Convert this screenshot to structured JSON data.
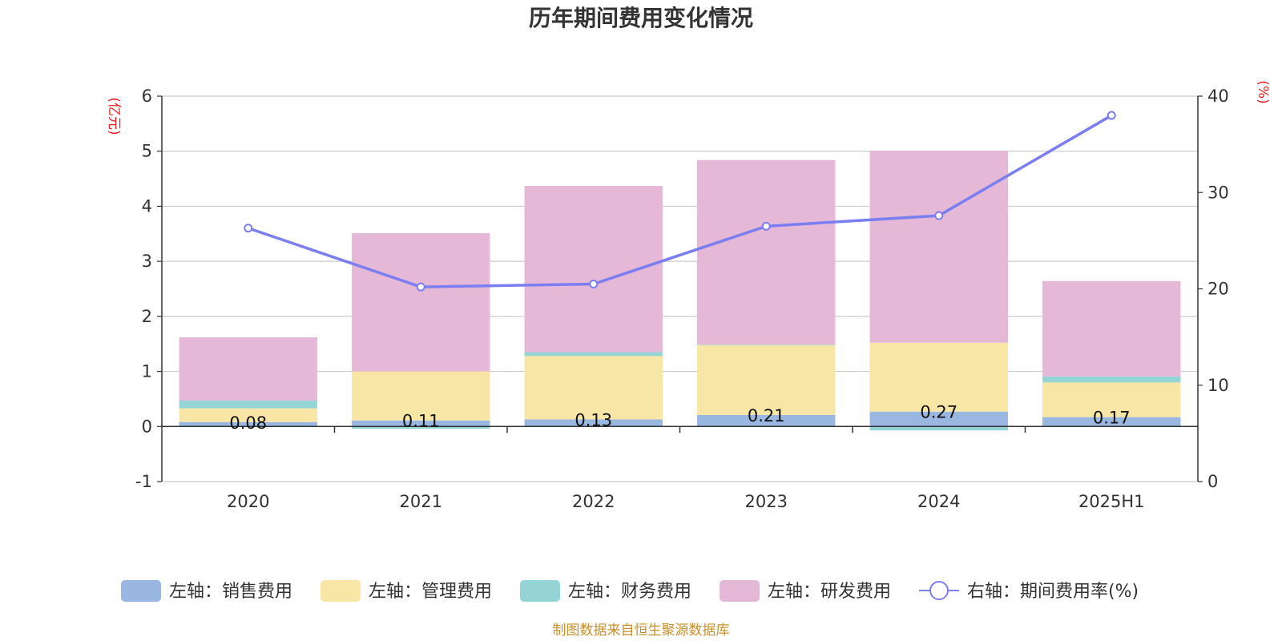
{
  "chart_data": {
    "type": "bar",
    "title": "历年期间费用变化情况",
    "categories": [
      "2020",
      "2021",
      "2022",
      "2023",
      "2024",
      "2025H1"
    ],
    "left_axis": {
      "unit": "(亿元)",
      "ylim": [
        -1,
        6
      ],
      "ticks": [
        "-1",
        "0",
        "1",
        "2",
        "3",
        "4",
        "5",
        "6"
      ]
    },
    "right_axis": {
      "unit": "(%)",
      "ylim": [
        0,
        40
      ],
      "ticks": [
        "0",
        "10",
        "20",
        "30",
        "40"
      ]
    },
    "stacked_series": [
      {
        "name": "左轴：销售费用",
        "color": "#9ab7e2",
        "values": [
          0.08,
          0.11,
          0.13,
          0.21,
          0.27,
          0.17
        ]
      },
      {
        "name": "左轴：管理费用",
        "color": "#f7e6a6",
        "values": [
          0.25,
          0.89,
          1.15,
          1.27,
          1.25,
          0.63
        ]
      },
      {
        "name": "左轴：财务费用",
        "color": "#95d4d4",
        "values": [
          0.14,
          -0.04,
          0.07,
          0.01,
          -0.07,
          0.11
        ]
      },
      {
        "name": "左轴：研发费用",
        "color": "#e6b8d8",
        "values": [
          1.15,
          2.51,
          3.02,
          3.35,
          3.49,
          1.73
        ]
      }
    ],
    "line_series": {
      "name": "右轴：期间费用率(%)",
      "color": "#7b7ef0",
      "values": [
        26.3,
        20.2,
        20.5,
        26.5,
        27.6,
        38.0
      ]
    },
    "data_labels": [
      "0.08",
      "0.11",
      "0.13",
      "0.21",
      "0.27",
      "0.17"
    ],
    "grid": true,
    "legend_position": "bottom"
  },
  "source_text": "制图数据来自恒生聚源数据库"
}
